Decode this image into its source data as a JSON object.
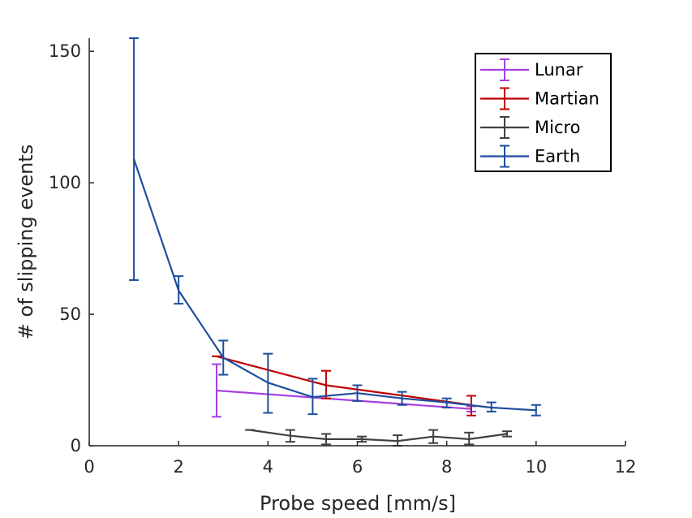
{
  "chart_data": {
    "type": "line",
    "xlabel": "Probe speed [mm/s]",
    "ylabel": "# of slipping events",
    "xlim": [
      0,
      12
    ],
    "ylim": [
      0,
      155
    ],
    "xticks": [
      0,
      2,
      4,
      6,
      8,
      10,
      12
    ],
    "yticks": [
      0,
      50,
      100,
      150
    ],
    "legend_position": "top-right",
    "series": [
      {
        "name": "Lunar",
        "color": "#a53fe0",
        "points": [
          {
            "x": 2.85,
            "y": 21,
            "lo": 11,
            "hi": 31
          },
          {
            "x": 8.55,
            "y": 14,
            "lo": 13,
            "hi": 15
          }
        ]
      },
      {
        "name": "Martian",
        "color": "#c00000",
        "points": [
          {
            "x": 2.85,
            "y": 34,
            "lo": 34,
            "hi": 34
          },
          {
            "x": 5.3,
            "y": 23,
            "lo": 18,
            "hi": 28.5
          },
          {
            "x": 8.55,
            "y": 15.5,
            "lo": 11.5,
            "hi": 19
          }
        ]
      },
      {
        "name": "Micro",
        "color": "#404040",
        "points": [
          {
            "x": 3.6,
            "y": 6,
            "lo": 6,
            "hi": 6
          },
          {
            "x": 4.5,
            "y": 3.8,
            "lo": 1.5,
            "hi": 6
          },
          {
            "x": 5.3,
            "y": 2.5,
            "lo": 0.5,
            "hi": 4.5
          },
          {
            "x": 6.1,
            "y": 2.5,
            "lo": 1.5,
            "hi": 3.5
          },
          {
            "x": 6.9,
            "y": 1.8,
            "lo": 0,
            "hi": 4
          },
          {
            "x": 7.7,
            "y": 3.5,
            "lo": 1,
            "hi": 6
          },
          {
            "x": 8.5,
            "y": 2.5,
            "lo": 0.5,
            "hi": 5
          },
          {
            "x": 9.35,
            "y": 4.5,
            "lo": 3.5,
            "hi": 5.5
          }
        ]
      },
      {
        "name": "Earth",
        "color": "#1f4e9e",
        "points": [
          {
            "x": 1,
            "y": 109,
            "lo": 63,
            "hi": 155
          },
          {
            "x": 2,
            "y": 59,
            "lo": 54,
            "hi": 64.5
          },
          {
            "x": 3,
            "y": 33.5,
            "lo": 27,
            "hi": 40
          },
          {
            "x": 4,
            "y": 24,
            "lo": 12.5,
            "hi": 35
          },
          {
            "x": 5,
            "y": 18.5,
            "lo": 12,
            "hi": 25.5
          },
          {
            "x": 6,
            "y": 20,
            "lo": 17,
            "hi": 23
          },
          {
            "x": 7,
            "y": 18,
            "lo": 15.5,
            "hi": 20.5
          },
          {
            "x": 8,
            "y": 16.5,
            "lo": 14.5,
            "hi": 18
          },
          {
            "x": 9,
            "y": 14.5,
            "lo": 13,
            "hi": 16.5
          },
          {
            "x": 10,
            "y": 13.5,
            "lo": 11.5,
            "hi": 15.5
          }
        ]
      }
    ]
  }
}
